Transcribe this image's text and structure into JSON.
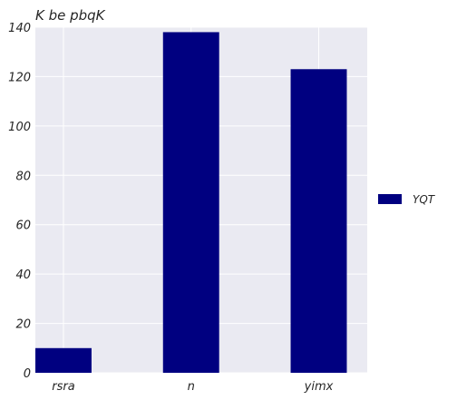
{
  "chart_data": {
    "type": "bar",
    "title": "K  be pbqK",
    "categories": [
      "rsra",
      "n",
      "yimx"
    ],
    "series": [
      {
        "name": "YQT",
        "values": [
          10,
          138,
          123
        ]
      }
    ],
    "xlabel": "",
    "ylabel": "",
    "ylim": [
      0,
      140
    ],
    "yticks": [
      0,
      20,
      40,
      60,
      80,
      100,
      120,
      140
    ],
    "grid": true,
    "legend_position": "right",
    "colors": {
      "bar": "#000080",
      "plot_background": "#eaeaf2",
      "grid": "#ffffff"
    }
  }
}
